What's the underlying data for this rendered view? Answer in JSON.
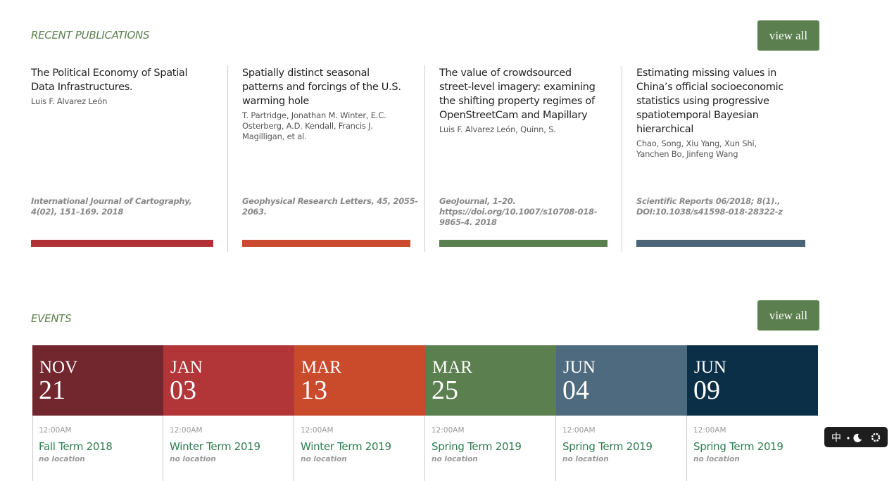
{
  "publications": {
    "heading": "RECENT PUBLICATIONS",
    "view_all": "view all",
    "items": [
      {
        "title": "The Political Economy of Spatial Data Infrastructures.",
        "authors": "Luis F. Alvarez León",
        "citation": "International Journal of Cartography, 4(02), 151–169. 2018"
      },
      {
        "title": "Spatially distinct seasonal patterns and forcings of the U.S. warming hole",
        "authors": "T. Partridge, Jonathan M. Winter, E.C. Osterberg, A.D. Kendall, Francis J. Magilligan, et al.",
        "citation": "Geophysical Research Letters, 45, 2055-2063."
      },
      {
        "title": "The value of crowdsourced street-level imagery: examining the shifting property regimes of OpenStreetCam and Mapillary",
        "authors": "Luis F. Alvarez León, Quinn, S.",
        "citation": "GeoJournal, 1–20. https://doi.org/10.1007/s10708-018-9865-4. 2018"
      },
      {
        "title": "Estimating missing values in China’s official socioeconomic statistics using progressive spatiotemporal Bayesian hierarchical",
        "authors": "Chao, Song, Xiu Yang, Xun Shi, Yanchen Bo, Jinfeng Wang",
        "citation": "Scientific Reports 06/2018; 8(1)., DOI:10.1038/s41598-018-28322-z"
      }
    ]
  },
  "events": {
    "heading": "EVENTS",
    "view_all": "view all",
    "items": [
      {
        "month": "NOV",
        "day": "21",
        "time": "12:00AM",
        "title": "Fall Term 2018",
        "location": "no location"
      },
      {
        "month": "JAN",
        "day": "03",
        "time": "12:00AM",
        "title": "Winter Term 2019",
        "location": "no location"
      },
      {
        "month": "MAR",
        "day": "13",
        "time": "12:00AM",
        "title": "Winter Term 2019",
        "location": "no location"
      },
      {
        "month": "MAR",
        "day": "25",
        "time": "12:00AM",
        "title": "Spring Term 2019",
        "location": "no location"
      },
      {
        "month": "JUN",
        "day": "04",
        "time": "12:00AM",
        "title": "Spring Term 2019",
        "location": "no location"
      },
      {
        "month": "JUN",
        "day": "09",
        "time": "12:00AM",
        "title": "Spring Term 2019",
        "location": "no location"
      }
    ]
  },
  "ime": {
    "label": "中"
  }
}
